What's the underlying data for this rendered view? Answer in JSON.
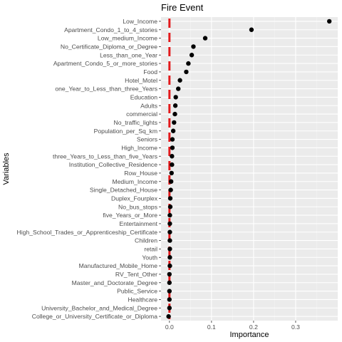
{
  "chart_data": {
    "type": "scatter",
    "title": "Fire Event",
    "xlabel": "Importance",
    "ylabel": "Variables",
    "xlim": [
      -0.02,
      0.4
    ],
    "x_ticks": [
      0.0,
      0.1,
      0.2,
      0.3
    ],
    "x_tick_labels": [
      "0.0",
      "0.1",
      "0.2",
      "0.3"
    ],
    "grid": true,
    "colors": {
      "panel": "#ebebeb",
      "grid_major": "#ffffff",
      "grid_minor": "#f5f5f5",
      "point": "#000000",
      "reference_line": "#e31a1c"
    },
    "reference_line": {
      "style": "dashed",
      "x": 0.0
    },
    "variables": [
      {
        "name": "Low_Income",
        "importance": 0.38
      },
      {
        "name": "Apartment_Condo_1_to_4_stories",
        "importance": 0.195
      },
      {
        "name": "Low_medium_Income",
        "importance": 0.085
      },
      {
        "name": "No_Certificate_Diploma_or_Degree",
        "importance": 0.057
      },
      {
        "name": "Less_than_one_Year",
        "importance": 0.053
      },
      {
        "name": "Apartment_Condo_5_or_more_stories",
        "importance": 0.045
      },
      {
        "name": "Food",
        "importance": 0.04
      },
      {
        "name": "Hotel_Motel",
        "importance": 0.025
      },
      {
        "name": "one_Year_to_Less_than_three_Years",
        "importance": 0.021
      },
      {
        "name": "Education",
        "importance": 0.015
      },
      {
        "name": "Adults",
        "importance": 0.014
      },
      {
        "name": "commercial",
        "importance": 0.013
      },
      {
        "name": "No_traffic_lights",
        "importance": 0.011
      },
      {
        "name": "Population_per_Sq_km",
        "importance": 0.009
      },
      {
        "name": "Seniors",
        "importance": 0.007
      },
      {
        "name": "High_Income",
        "importance": 0.007
      },
      {
        "name": "three_Years_to_Less_than_five_Years",
        "importance": 0.006
      },
      {
        "name": "Institution_Collective_Residence",
        "importance": 0.006
      },
      {
        "name": "Row_House",
        "importance": 0.005
      },
      {
        "name": "Medium_Income",
        "importance": 0.004
      },
      {
        "name": "Single_Detached_House",
        "importance": 0.003
      },
      {
        "name": "Duplex_Fourplex",
        "importance": 0.002
      },
      {
        "name": "No_bus_stops",
        "importance": 0.002
      },
      {
        "name": "five_Years_or_More",
        "importance": 0.001
      },
      {
        "name": "Entertainment",
        "importance": 0.001
      },
      {
        "name": "High_School_Trades_or_Apprenticeship_Certificate",
        "importance": 0.001
      },
      {
        "name": "Children",
        "importance": 0.001
      },
      {
        "name": "retail",
        "importance": 0.001
      },
      {
        "name": "Youth",
        "importance": 0.001
      },
      {
        "name": "Manufactured_Mobile_Home",
        "importance": 0.001
      },
      {
        "name": "RV_Tent_Other",
        "importance": 0.0
      },
      {
        "name": "Master_and_Doctorate_Degree",
        "importance": 0.0
      },
      {
        "name": "Public_Service",
        "importance": 0.0
      },
      {
        "name": "Healthcare",
        "importance": 0.0
      },
      {
        "name": "University_Bachelor_and_Medical_Degree",
        "importance": 0.0
      },
      {
        "name": "College_or_University_Certificate_or_Diploma",
        "importance": -0.002
      }
    ]
  }
}
